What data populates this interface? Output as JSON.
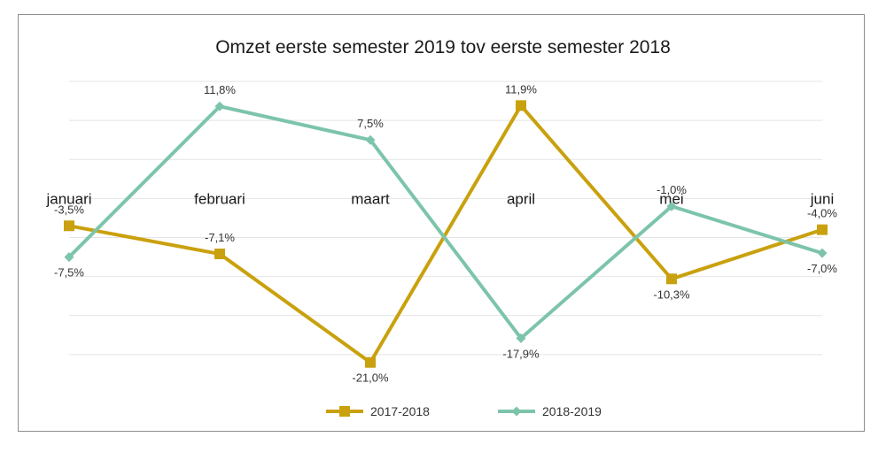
{
  "chart_data": {
    "type": "line",
    "title": "Omzet eerste semester 2019 tov eerste semester 2018",
    "categories": [
      "januari",
      "februari",
      "maart",
      "april",
      "mei",
      "juni"
    ],
    "series": [
      {
        "name": "2017-2018",
        "color": "#C9A10E",
        "marker": "square",
        "values": [
          -3.5,
          -7.1,
          -21.0,
          11.9,
          -10.3,
          -4.0
        ],
        "labels": [
          "-3,5%",
          "-7,1%",
          "-21,0%",
          "11,9%",
          "-10,3%",
          "-4,0%"
        ]
      },
      {
        "name": "2018-2019",
        "color": "#7CC4AA",
        "marker": "diamond",
        "values": [
          -7.5,
          11.8,
          7.5,
          -17.9,
          -1.0,
          -7.0
        ],
        "labels": [
          "-7,5%",
          "11,8%",
          "7,5%",
          "-17,9%",
          "-1,0%",
          "-7,0%"
        ]
      }
    ],
    "ylim": [
      -25,
      15
    ],
    "grid": true,
    "legend": "bottom",
    "xlabel": "",
    "ylabel": ""
  }
}
